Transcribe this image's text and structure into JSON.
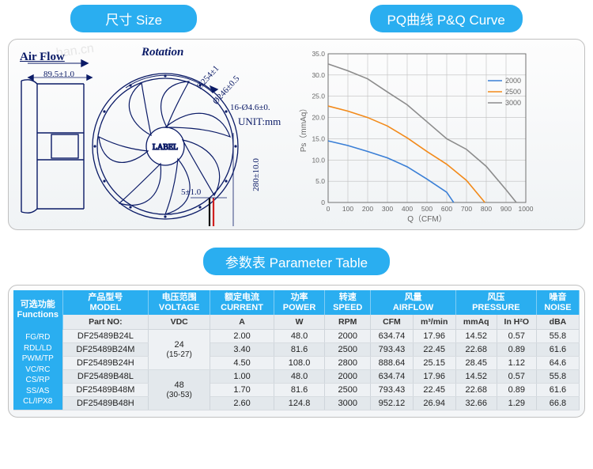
{
  "headers": {
    "size": "尺寸 Size",
    "pq": "PQ曲线 P&Q Curve",
    "table": "参数表 Parameter Table"
  },
  "diagram": {
    "air_flow": "Air Flow",
    "rotation": "Rotation",
    "width": "89.5±1.0",
    "outer_dia": "Ø254±1",
    "inner_dia": "Ø246±0.5",
    "holes": "16-Ø4.6±0.",
    "unit": "UNIT:mm",
    "label": "LABEL",
    "wire_h": "5±1.0",
    "wire_len": "280±10.0",
    "colors": {
      "line": "#0a1a66",
      "wire_red": "#d02020",
      "wire_black": "#111111"
    }
  },
  "chart": {
    "type": "line",
    "xlabel": "Q（CFM）",
    "ylabel": "Ps（mmAq）",
    "xlim": [
      0,
      1000
    ],
    "xtick_step": 100,
    "ylim": [
      0,
      35
    ],
    "yticks": [
      0,
      5.0,
      10.0,
      15.0,
      20.0,
      25.0,
      30.0,
      35.0
    ],
    "grid_color": "#bfbfbf",
    "axis_color": "#666666",
    "text_color": "#666666",
    "bg_color": "#ffffff",
    "label_fontsize": 10,
    "series": [
      {
        "name": "2000",
        "color": "#3a7fd6",
        "points": [
          [
            0,
            14.5
          ],
          [
            100,
            13.4
          ],
          [
            200,
            12.0
          ],
          [
            300,
            10.5
          ],
          [
            400,
            8.4
          ],
          [
            500,
            5.5
          ],
          [
            600,
            2.4
          ],
          [
            635,
            0
          ]
        ]
      },
      {
        "name": "2500",
        "color": "#f28a1a",
        "points": [
          [
            0,
            22.7
          ],
          [
            100,
            21.5
          ],
          [
            200,
            20.0
          ],
          [
            300,
            18.0
          ],
          [
            400,
            15.2
          ],
          [
            500,
            12.0
          ],
          [
            600,
            9.0
          ],
          [
            700,
            5.2
          ],
          [
            793,
            0
          ]
        ]
      },
      {
        "name": "3000",
        "color": "#8c8c8c",
        "points": [
          [
            0,
            32.6
          ],
          [
            100,
            31.0
          ],
          [
            200,
            29.1
          ],
          [
            300,
            26.0
          ],
          [
            400,
            23.0
          ],
          [
            500,
            19.0
          ],
          [
            600,
            15.0
          ],
          [
            700,
            12.5
          ],
          [
            800,
            8.5
          ],
          [
            900,
            3.0
          ],
          [
            952,
            0
          ]
        ]
      }
    ],
    "legend_pos": "right"
  },
  "table": {
    "top_headers_cn": [
      "可选功能",
      "产品型号",
      "电压范围",
      "额定电流",
      "功率",
      "转速",
      "风量",
      "风压",
      "噪音"
    ],
    "top_headers_en": [
      "Functions",
      "MODEL",
      "VOLTAGE",
      "CURRENT",
      "POWER",
      "SPEED",
      "AIRFLOW",
      "PRESSURE",
      "NOISE"
    ],
    "sub_headers": [
      "Part NO:",
      "VDC",
      "A",
      "W",
      "RPM",
      "CFM",
      "m³/min",
      "mmAq",
      "In H²O",
      "dBA"
    ],
    "functions": "FG/RD\nRDL/LD\nPWM/TP\nVC/RC\nCS/RP\nSS/AS\nCL/IPX8",
    "voltages": [
      "24",
      "(15-27)",
      "48",
      "(30-53)"
    ],
    "rows": [
      [
        "DF25489B24L",
        "2.00",
        "48.0",
        "2000",
        "634.74",
        "17.96",
        "14.52",
        "0.57",
        "55.8"
      ],
      [
        "DF25489B24M",
        "3.40",
        "81.6",
        "2500",
        "793.43",
        "22.45",
        "22.68",
        "0.89",
        "61.6"
      ],
      [
        "DF25489B24H",
        "4.50",
        "108.0",
        "2800",
        "888.64",
        "25.15",
        "28.45",
        "1.12",
        "64.6"
      ],
      [
        "DF25489B48L",
        "1.00",
        "48.0",
        "2000",
        "634.74",
        "17.96",
        "14.52",
        "0.57",
        "55.8"
      ],
      [
        "DF25489B48M",
        "1.70",
        "81.6",
        "2500",
        "793.43",
        "22.45",
        "22.68",
        "0.89",
        "61.6"
      ],
      [
        "DF25489B48H",
        "2.60",
        "124.8",
        "3000",
        "952.12",
        "26.94",
        "32.66",
        "1.29",
        "66.8"
      ]
    ],
    "header_bg": "#2aaef0",
    "row_odd_bg": "#eef1f4",
    "row_even_bg": "#e3e8ec"
  }
}
